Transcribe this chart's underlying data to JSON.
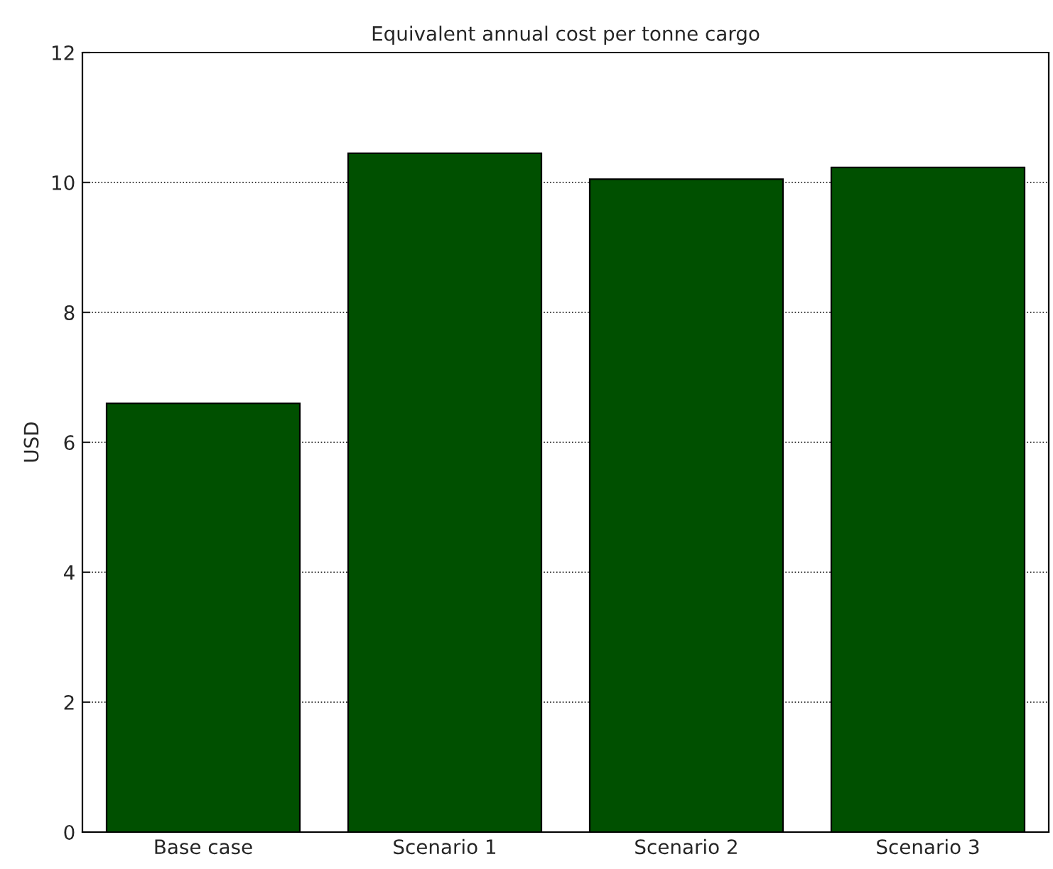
{
  "chart_data": {
    "type": "bar",
    "title": "Equivalent annual cost per tonne cargo",
    "ylabel": "USD",
    "categories": [
      "Base case",
      "Scenario 1",
      "Scenario 2",
      "Scenario 3"
    ],
    "values": [
      6.6,
      10.45,
      10.05,
      10.23
    ],
    "color": "#005000",
    "ylim": [
      0,
      12
    ],
    "yticks": [
      0,
      2,
      4,
      6,
      8,
      10,
      12
    ],
    "grid": "y",
    "legend": false
  }
}
